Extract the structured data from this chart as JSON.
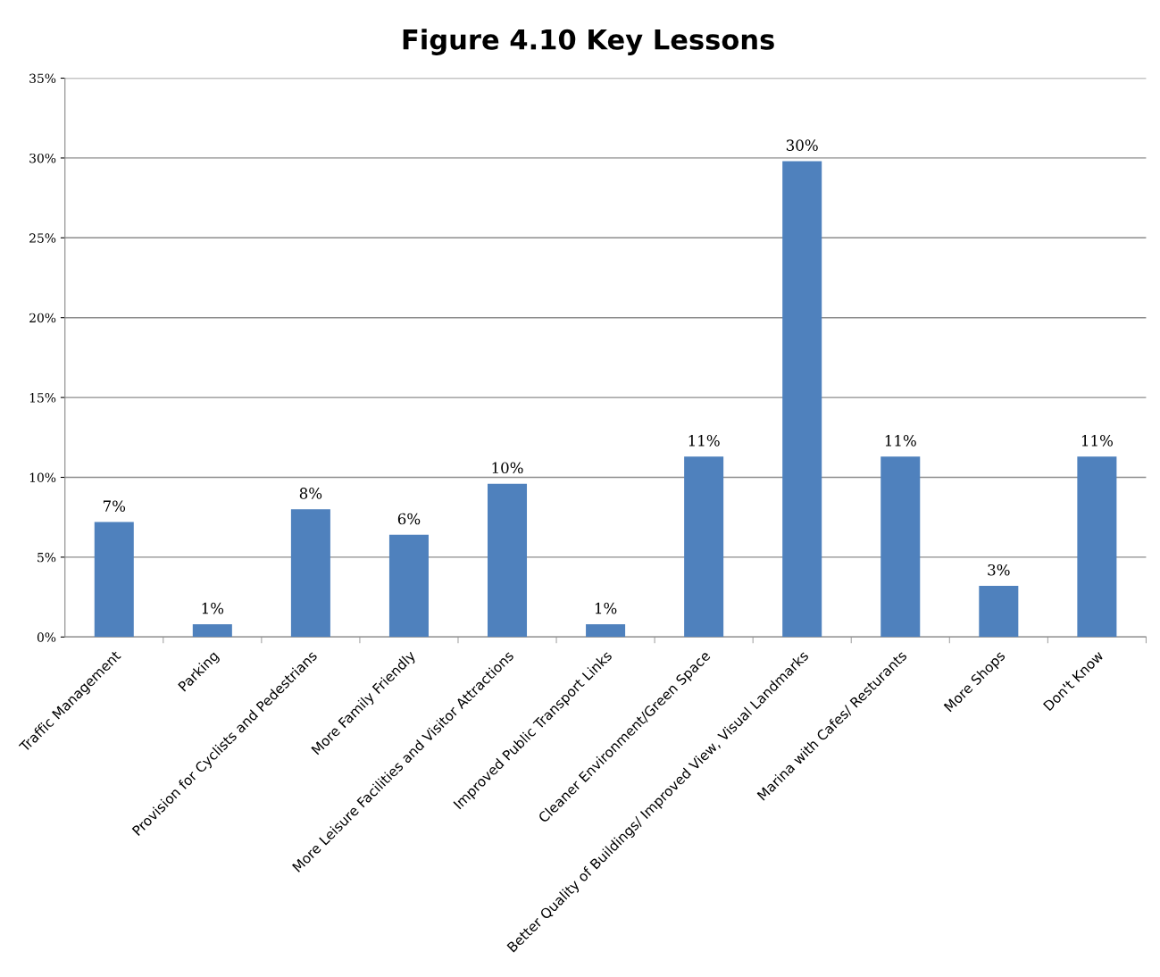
{
  "chart_data": {
    "type": "bar",
    "title": "Figure 4.10 Key Lessons",
    "categories": [
      "Traffic Management",
      "Parking",
      "Provision for Cyclists and Pedestrians",
      "More Family Friendly",
      "More Leisure Facilities and Visitor Attractions",
      "Improved Public Transport Links",
      "Cleaner Environment/Green Space",
      "Better Quality of Buildings/ Improved View, Visual Landmarks",
      "Marina with Cafes/ Resturants",
      "More Shops",
      "Don't Know"
    ],
    "values": [
      7.2,
      0.8,
      8.0,
      6.4,
      9.6,
      0.8,
      11.3,
      29.8,
      11.3,
      3.2,
      11.3
    ],
    "value_labels": [
      "7%",
      "1%",
      "8%",
      "6%",
      "10%",
      "1%",
      "11%",
      "30%",
      "11%",
      "3%",
      "11%"
    ],
    "color": "#4f81bd",
    "ylim": [
      0,
      35
    ],
    "yticks": [
      {
        "value": 0,
        "label": "0%"
      },
      {
        "value": 5,
        "label": "5%"
      },
      {
        "value": 10,
        "label": "10%"
      },
      {
        "value": 15,
        "label": "15%"
      },
      {
        "value": 20,
        "label": "20%"
      },
      {
        "value": 25,
        "label": "25%"
      },
      {
        "value": 30,
        "label": "30%"
      },
      {
        "value": 35,
        "label": "35%"
      }
    ],
    "grid": "y"
  }
}
